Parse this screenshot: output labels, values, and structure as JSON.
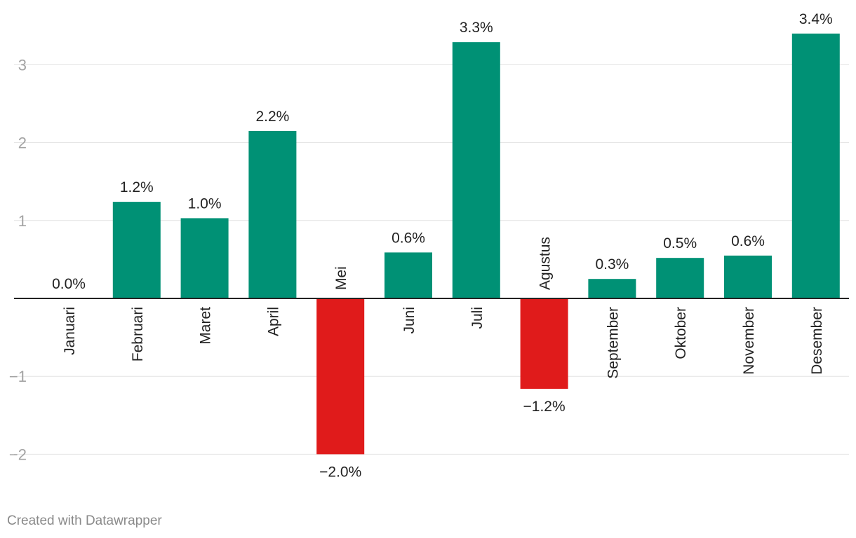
{
  "chart_data": {
    "type": "bar",
    "categories": [
      "Januari",
      "Februari",
      "Maret",
      "April",
      "Mei",
      "Juni",
      "Juli",
      "Agustus",
      "September",
      "Oktober",
      "November",
      "Desember"
    ],
    "values": [
      0.0,
      1.24,
      1.03,
      2.15,
      -2.0,
      0.59,
      3.29,
      -1.16,
      0.25,
      0.52,
      0.55,
      3.4
    ],
    "data_labels": [
      "0.0%",
      "1.2%",
      "1.0%",
      "2.2%",
      "−2.0%",
      "0.6%",
      "3.3%",
      "−1.2%",
      "0.3%",
      "0.5%",
      "0.6%",
      "3.4%"
    ],
    "yticks": [
      3,
      2,
      1,
      -1,
      -2
    ],
    "ytick_labels": [
      "3",
      "2",
      "1",
      "−1",
      "−2"
    ],
    "ylim": [
      -2.2,
      3.6
    ],
    "grid": true,
    "colors": {
      "positive": "#009175",
      "negative": "#e01b1b",
      "grid": "#e3e3e3",
      "axis": "#222222"
    },
    "title": "",
    "xlabel": "",
    "ylabel": ""
  },
  "footer": {
    "credit": "Created with Datawrapper"
  }
}
